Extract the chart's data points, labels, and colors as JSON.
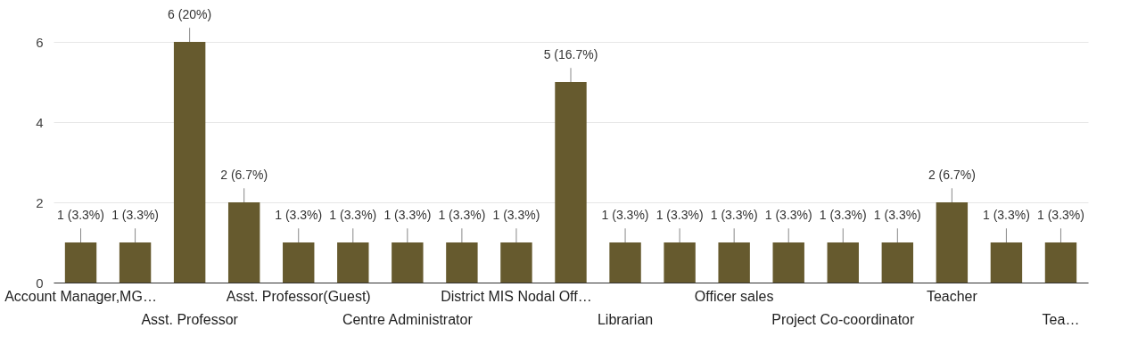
{
  "chart_data": {
    "type": "bar",
    "categories": [
      "Account Manager,MG…",
      null,
      "Asst. Professor",
      null,
      "Asst. Professor(Guest)",
      null,
      "Centre Administrator",
      null,
      "District MIS Nodal Off…",
      null,
      "Librarian",
      null,
      "Officer sales",
      null,
      "Project Co-coordinator",
      null,
      "Teacher",
      null,
      "Tea…"
    ],
    "values": [
      1,
      1,
      6,
      2,
      1,
      1,
      1,
      1,
      1,
      5,
      1,
      1,
      1,
      1,
      1,
      1,
      2,
      1,
      1
    ],
    "value_labels": [
      "1 (3.3%)",
      "1 (3.3%)",
      "6 (20%)",
      "2 (6.7%)",
      "1 (3.3%)",
      "1 (3.3%)",
      "1 (3.3%)",
      "1 (3.3%)",
      "1 (3.3%)",
      "5 (16.7%)",
      "1 (3.3%)",
      "1 (3.3%)",
      "1 (3.3%)",
      "1 (3.3%)",
      "1 (3.3%)",
      "1 (3.3%)",
      "2 (6.7%)",
      "1 (3.3%)",
      "1 (3.3%)"
    ],
    "color": "#665a2e",
    "ylim": [
      0,
      6
    ],
    "yticks": [
      0,
      2,
      4,
      6
    ],
    "grid": "y"
  }
}
